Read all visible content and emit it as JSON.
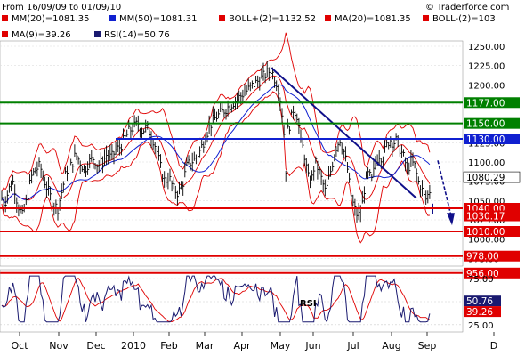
{
  "header": {
    "date_range": "From 16/09/09 to 01/09/10",
    "source": "© Traderforce.com"
  },
  "legend": [
    {
      "label": "MM(20)=1081.35",
      "color": "#e00000"
    },
    {
      "label": "MM(50)=1081.31",
      "color": "#1020d0"
    },
    {
      "label": "BOLL+(2)=1132.52",
      "color": "#e00000"
    },
    {
      "label": "MA(20)=1081.35",
      "color": "#e00000"
    },
    {
      "label": "BOLL-(2)=103",
      "color": "#e00000"
    },
    {
      "label": "MA(9)=39.26",
      "color": "#e00000"
    },
    {
      "label": "RSI(14)=50.76",
      "color": "#1a1a70"
    }
  ],
  "chart_data": [
    {
      "type": "line",
      "title": "",
      "y_ticks": [
        1250,
        1225,
        1200,
        1175,
        1150,
        1125,
        1100,
        1075,
        1050,
        1025,
        1000,
        975,
        950
      ],
      "ylim": [
        950,
        1255
      ],
      "x_tick_labels": [
        "Oct",
        "Nov",
        "Dec",
        "2010",
        "Feb",
        "Mar",
        "Apr",
        "May",
        "Jun",
        "Jul",
        "Aug",
        "Sep",
        "D"
      ],
      "series": [
        {
          "name": "MM(20)",
          "color": "#e00000",
          "last": 1081.35
        },
        {
          "name": "MM(50)",
          "color": "#1020d0",
          "last": 1081.31
        },
        {
          "name": "BOLL+(2)",
          "color": "#e00000",
          "last": 1132.52
        },
        {
          "name": "BOLL-(2)",
          "color": "#e00000"
        }
      ],
      "price_path": [
        [
          0,
          1060
        ],
        [
          5,
          1045
        ],
        [
          10,
          1065
        ],
        [
          15,
          1075
        ],
        [
          20,
          1045
        ],
        [
          25,
          1030
        ],
        [
          30,
          1050
        ],
        [
          35,
          1080
        ],
        [
          40,
          1090
        ],
        [
          45,
          1095
        ],
        [
          50,
          1075
        ],
        [
          55,
          1060
        ],
        [
          60,
          1045
        ],
        [
          65,
          1040
        ],
        [
          70,
          1065
        ],
        [
          75,
          1090
        ],
        [
          80,
          1095
        ],
        [
          85,
          1110
        ],
        [
          90,
          1100
        ],
        [
          95,
          1090
        ],
        [
          100,
          1100
        ],
        [
          105,
          1105
        ],
        [
          110,
          1095
        ],
        [
          115,
          1100
        ],
        [
          120,
          1110
        ],
        [
          125,
          1105
        ],
        [
          130,
          1115
        ],
        [
          135,
          1120
        ],
        [
          140,
          1130
        ],
        [
          145,
          1140
        ],
        [
          150,
          1145
        ],
        [
          155,
          1150
        ],
        [
          160,
          1140
        ],
        [
          165,
          1145
        ],
        [
          170,
          1135
        ],
        [
          175,
          1120
        ],
        [
          180,
          1095
        ],
        [
          185,
          1075
        ],
        [
          190,
          1080
        ],
        [
          195,
          1065
        ],
        [
          200,
          1060
        ],
        [
          205,
          1070
        ],
        [
          210,
          1095
        ],
        [
          215,
          1100
        ],
        [
          220,
          1105
        ],
        [
          225,
          1115
        ],
        [
          230,
          1130
        ],
        [
          235,
          1145
        ],
        [
          240,
          1155
        ],
        [
          245,
          1160
        ],
        [
          250,
          1165
        ],
        [
          255,
          1170
        ],
        [
          260,
          1175
        ],
        [
          265,
          1180
        ],
        [
          270,
          1185
        ],
        [
          275,
          1190
        ],
        [
          280,
          1195
        ],
        [
          285,
          1200
        ],
        [
          290,
          1205
        ],
        [
          295,
          1210
        ],
        [
          300,
          1215
        ],
        [
          305,
          1220
        ],
        [
          308,
          1210
        ],
        [
          312,
          1200
        ],
        [
          316,
          1175
        ],
        [
          319,
          1140
        ],
        [
          321,
          1085
        ],
        [
          323,
          1140
        ],
        [
          326,
          1150
        ],
        [
          330,
          1170
        ],
        [
          334,
          1160
        ],
        [
          338,
          1130
        ],
        [
          342,
          1110
        ],
        [
          346,
          1080
        ],
        [
          350,
          1075
        ],
        [
          354,
          1100
        ],
        [
          358,
          1090
        ],
        [
          362,
          1075
        ],
        [
          366,
          1060
        ],
        [
          370,
          1080
        ],
        [
          374,
          1100
        ],
        [
          378,
          1120
        ],
        [
          382,
          1130
        ],
        [
          386,
          1115
        ],
        [
          390,
          1095
        ],
        [
          394,
          1060
        ],
        [
          398,
          1040
        ],
        [
          402,
          1030
        ],
        [
          406,
          1035
        ],
        [
          410,
          1070
        ],
        [
          414,
          1085
        ],
        [
          418,
          1075
        ],
        [
          422,
          1100
        ],
        [
          426,
          1110
        ],
        [
          430,
          1105
        ],
        [
          434,
          1120
        ],
        [
          438,
          1130
        ],
        [
          442,
          1125
        ],
        [
          446,
          1128
        ],
        [
          450,
          1115
        ],
        [
          454,
          1105
        ],
        [
          458,
          1090
        ],
        [
          462,
          1100
        ],
        [
          466,
          1095
        ],
        [
          470,
          1075
        ],
        [
          474,
          1065
        ],
        [
          478,
          1050
        ],
        [
          482,
          1060
        ],
        [
          485,
          1070
        ]
      ],
      "levels": [
        {
          "value": 1177.0,
          "label": "1177.00",
          "color": "#008000"
        },
        {
          "value": 1150.0,
          "label": "1150.00",
          "color": "#008000"
        },
        {
          "value": 1130.0,
          "label": "1130.00",
          "color": "#1020d0"
        },
        {
          "value": 1080.29,
          "label": "1080.29",
          "color": "#000000"
        },
        {
          "value": 1040.0,
          "label": "1040.00",
          "color": "#e00000"
        },
        {
          "value": 1030.17,
          "label": "1030.17",
          "color": "#e00000"
        },
        {
          "value": 1010.0,
          "label": "1010.00",
          "color": "#e00000"
        },
        {
          "value": 978.0,
          "label": "978.00",
          "color": "#e00000"
        },
        {
          "value": 956.0,
          "label": "956.00",
          "color": "#e00000"
        }
      ]
    },
    {
      "type": "line",
      "title": "RSI",
      "y_ticks": [
        75.0,
        50.0,
        25.0
      ],
      "ylim": [
        20,
        85
      ],
      "series": [
        {
          "name": "RSI(14)",
          "color": "#1a1a70",
          "last": 50.76
        },
        {
          "name": "MA(9)",
          "color": "#e00000",
          "last": 39.26
        }
      ],
      "value_labels": [
        {
          "value": 50.76,
          "label": "50.76",
          "color": "#1a1a70"
        },
        {
          "value": 39.26,
          "label": "39.26",
          "color": "#e00000"
        }
      ]
    }
  ]
}
